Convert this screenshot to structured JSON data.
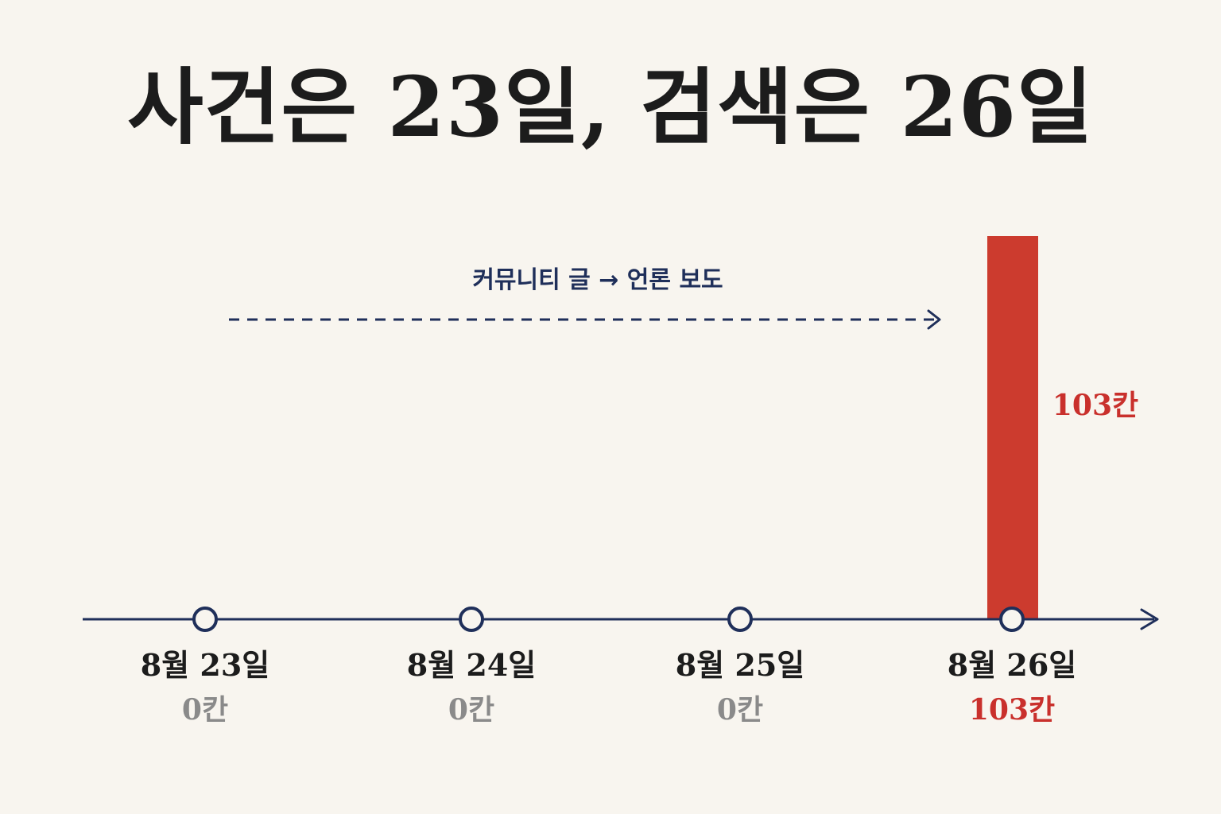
{
  "title": "사건은 23일, 검색은 26일",
  "colors": {
    "background": "#f8f5ef",
    "title": "#1c1c1c",
    "axis": "#1f2f5a",
    "bar": "#cc3b2e",
    "highlight_text": "#c9302c",
    "zero_text": "#8a8a8a",
    "date_text": "#1c1c1c"
  },
  "annotation": {
    "text": "커뮤니티 글 → 언론 보도"
  },
  "chart_data": {
    "type": "bar",
    "title": "사건은 23일, 검색은 26일",
    "xlabel": "",
    "ylabel": "",
    "categories": [
      "8월 23일",
      "8월 24일",
      "8월 25일",
      "8월 26일"
    ],
    "values": [
      0,
      0,
      0,
      103
    ],
    "value_labels": [
      "0칸",
      "0칸",
      "0칸",
      "103칸"
    ],
    "bar_value_label": "103칸",
    "ylim": [
      0,
      103
    ],
    "grid": false,
    "legend": "none"
  }
}
